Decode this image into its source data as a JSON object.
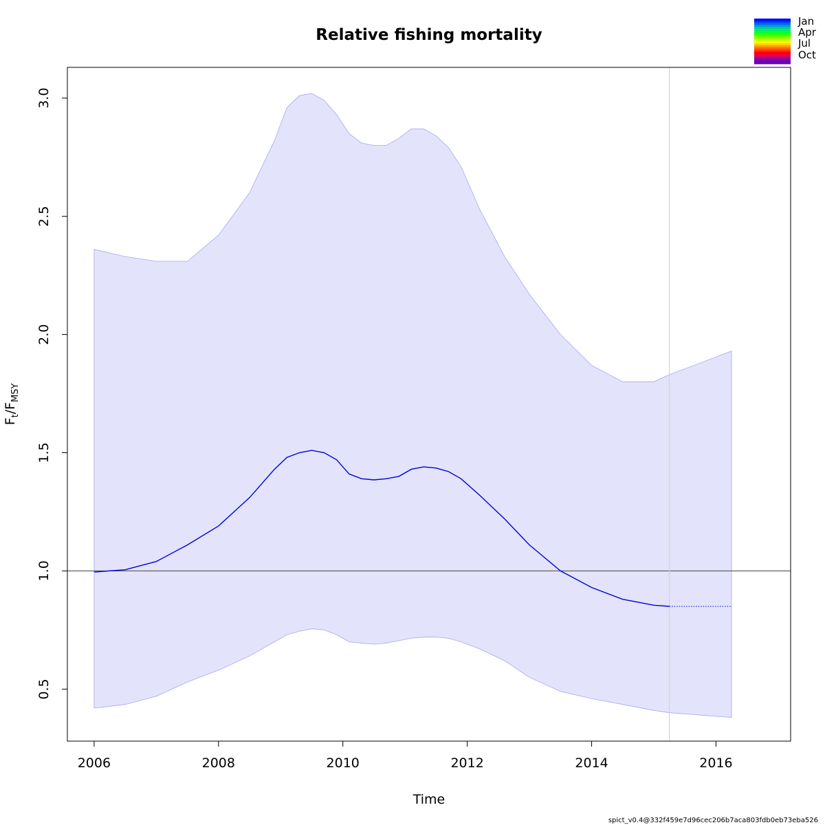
{
  "chart_data": {
    "type": "line",
    "title": "Relative fishing mortality",
    "xlabel": "Time",
    "ylabel": {
      "main": "F",
      "sub1": "t",
      "sep": "/F",
      "sub2": "MSY"
    },
    "xlim": [
      2005.57,
      2017.2
    ],
    "ylim": [
      0.28,
      3.13
    ],
    "x_ticks": [
      2006,
      2008,
      2010,
      2012,
      2014,
      2016
    ],
    "x_tick_labels": [
      "2006",
      "2008",
      "2010",
      "2012",
      "2014",
      "2016"
    ],
    "y_ticks": [
      0.5,
      1.0,
      1.5,
      2.0,
      2.5,
      3.0
    ],
    "y_tick_labels": [
      "0.5",
      "1.0",
      "1.5",
      "2.0",
      "2.5",
      "3.0"
    ],
    "reference_line": {
      "y": 1.0,
      "color": "#555555"
    },
    "vertical_line": {
      "x": 2015.25,
      "color": "#d3d3d3"
    },
    "series": [
      {
        "role": "estimate",
        "color": "#0000dd",
        "x": [
          2006.0,
          2006.5,
          2007.0,
          2007.5,
          2008.0,
          2008.5,
          2008.9,
          2009.1,
          2009.3,
          2009.5,
          2009.7,
          2009.9,
          2010.1,
          2010.3,
          2010.5,
          2010.7,
          2010.9,
          2011.1,
          2011.3,
          2011.5,
          2011.7,
          2011.9,
          2012.2,
          2012.6,
          2013.0,
          2013.5,
          2014.0,
          2014.5,
          2015.0,
          2015.25
        ],
        "y": [
          0.995,
          1.005,
          1.04,
          1.11,
          1.19,
          1.31,
          1.43,
          1.48,
          1.5,
          1.51,
          1.5,
          1.47,
          1.41,
          1.39,
          1.385,
          1.39,
          1.4,
          1.43,
          1.44,
          1.435,
          1.42,
          1.39,
          1.32,
          1.22,
          1.11,
          1.0,
          0.93,
          0.88,
          0.855,
          0.85
        ]
      },
      {
        "role": "forecast",
        "color": "#0000dd",
        "style": "dotted",
        "x": [
          2015.25,
          2016.25
        ],
        "y": [
          0.85,
          0.85
        ]
      }
    ],
    "band": {
      "color": "#e3e3fb",
      "edge_color": "#a8a8f0",
      "x": [
        2006.0,
        2006.5,
        2007.0,
        2007.5,
        2008.0,
        2008.5,
        2008.9,
        2009.1,
        2009.3,
        2009.5,
        2009.7,
        2009.9,
        2010.1,
        2010.3,
        2010.5,
        2010.7,
        2010.9,
        2011.1,
        2011.3,
        2011.5,
        2011.7,
        2011.9,
        2012.2,
        2012.6,
        2013.0,
        2013.5,
        2014.0,
        2014.5,
        2015.0,
        2015.25,
        2016.25
      ],
      "upper": [
        2.36,
        2.33,
        2.31,
        2.31,
        2.42,
        2.6,
        2.82,
        2.96,
        3.01,
        3.02,
        2.99,
        2.93,
        2.85,
        2.81,
        2.8,
        2.8,
        2.83,
        2.87,
        2.87,
        2.84,
        2.79,
        2.71,
        2.53,
        2.33,
        2.17,
        2.0,
        1.87,
        1.8,
        1.8,
        1.83,
        1.93
      ],
      "lower": [
        0.42,
        0.435,
        0.47,
        0.53,
        0.58,
        0.64,
        0.7,
        0.73,
        0.745,
        0.755,
        0.75,
        0.73,
        0.7,
        0.695,
        0.69,
        0.695,
        0.705,
        0.715,
        0.72,
        0.72,
        0.715,
        0.7,
        0.67,
        0.62,
        0.55,
        0.49,
        0.46,
        0.435,
        0.41,
        0.4,
        0.38
      ]
    },
    "legend": {
      "placement": "top-right",
      "labels": [
        "Jan",
        "Apr",
        "Jul",
        "Oct"
      ],
      "colors": [
        "#0000ff",
        "#0033ff",
        "#0066ee",
        "#0099cc",
        "#00cc99",
        "#00ee66",
        "#00ff33",
        "#33ff00",
        "#66ff00",
        "#99ff00",
        "#ccff00",
        "#ffff00",
        "#ffcc00",
        "#ff9900",
        "#ff6600",
        "#ff3300",
        "#ff0000",
        "#ee0033",
        "#cc0066",
        "#990099",
        "#7700aa",
        "#6600bb"
      ]
    },
    "footer": "spict_v0.4@332f459e7d96cec206b7aca803fdb0eb73eba526"
  }
}
